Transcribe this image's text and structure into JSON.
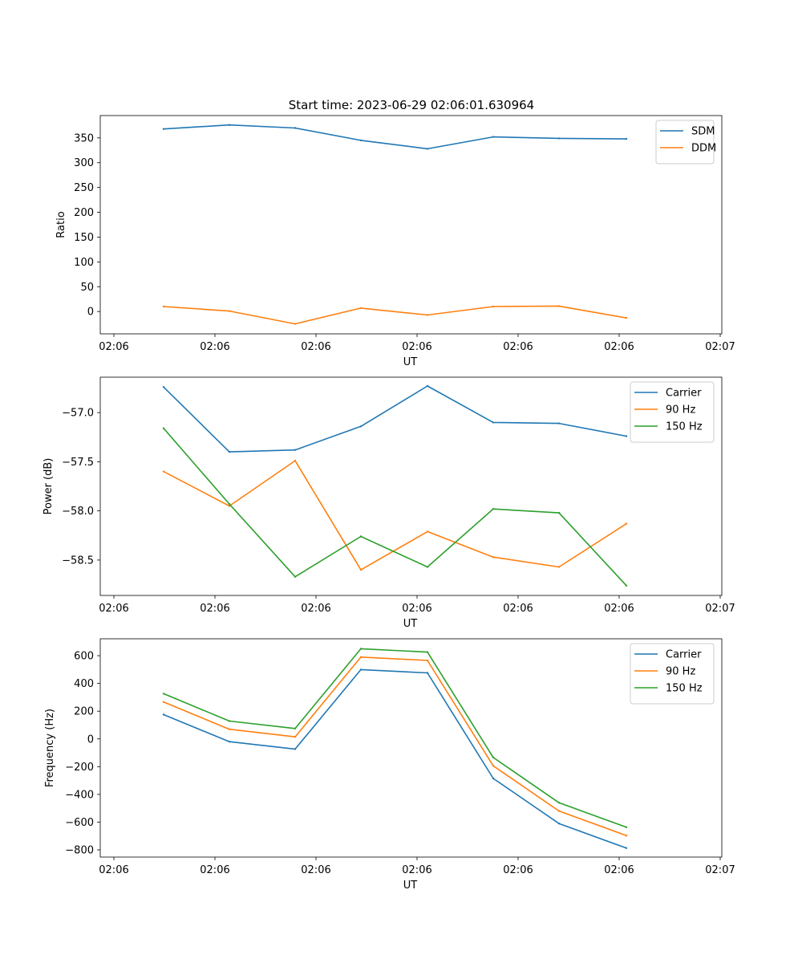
{
  "figure": {
    "title": "Start time: 2023-06-29 02:06:01.630964"
  },
  "chart_data": [
    {
      "type": "line",
      "title": "Start time: 2023-06-29 02:06:01.630964",
      "xlabel": "UT",
      "ylabel": "Ratio",
      "x_tick_labels": [
        "02:06",
        "02:06",
        "02:06",
        "02:06",
        "02:06",
        "02:06",
        "02:07"
      ],
      "y_ticks": [
        0,
        50,
        100,
        150,
        200,
        250,
        300,
        350
      ],
      "ylim": [
        -45,
        395
      ],
      "legend_position": "top-right",
      "grid": false,
      "series": [
        {
          "name": "SDM",
          "color": "#1f77b4",
          "values": [
            368,
            376,
            370,
            345,
            328,
            352,
            349,
            348
          ]
        },
        {
          "name": "DDM",
          "color": "#ff7f0e",
          "values": [
            10,
            1,
            -25,
            7,
            -7,
            10,
            11,
            -13
          ]
        }
      ]
    },
    {
      "type": "line",
      "title": "",
      "xlabel": "UT",
      "ylabel": "Power (dB)",
      "x_tick_labels": [
        "02:06",
        "02:06",
        "02:06",
        "02:06",
        "02:06",
        "02:06",
        "02:07"
      ],
      "y_ticks": [
        -58.5,
        -58.0,
        -57.5,
        -57.0
      ],
      "y_tick_labels": [
        "−58.5",
        "−58.0",
        "−57.5",
        "−57.0"
      ],
      "ylim": [
        -58.86,
        -56.64
      ],
      "legend_position": "top-right",
      "grid": false,
      "series": [
        {
          "name": "Carrier",
          "color": "#1f77b4",
          "values": [
            -56.74,
            -57.4,
            -57.38,
            -57.14,
            -56.73,
            -57.1,
            -57.11,
            -57.24
          ]
        },
        {
          "name": "90 Hz",
          "color": "#ff7f0e",
          "values": [
            -57.6,
            -57.95,
            -57.49,
            -58.6,
            -58.21,
            -58.47,
            -58.57,
            -58.13
          ]
        },
        {
          "name": "150 Hz",
          "color": "#2ca02c",
          "values": [
            -57.16,
            -57.93,
            -58.67,
            -58.26,
            -58.57,
            -57.98,
            -58.02,
            -58.76
          ]
        }
      ]
    },
    {
      "type": "line",
      "title": "",
      "xlabel": "UT",
      "ylabel": "Frequency (Hz)",
      "x_tick_labels": [
        "02:06",
        "02:06",
        "02:06",
        "02:06",
        "02:06",
        "02:06",
        "02:07"
      ],
      "y_ticks": [
        -800,
        -600,
        -400,
        -200,
        0,
        200,
        400,
        600
      ],
      "y_tick_labels": [
        "−800",
        "−600",
        "−400",
        "−200",
        "0",
        "200",
        "400",
        "600"
      ],
      "ylim": [
        -852,
        722
      ],
      "legend_position": "top-right",
      "grid": false,
      "series": [
        {
          "name": "Carrier",
          "color": "#1f77b4",
          "values": [
            175,
            -20,
            -73,
            500,
            476,
            -285,
            -610,
            -787
          ]
        },
        {
          "name": "90 Hz",
          "color": "#ff7f0e",
          "values": [
            266,
            70,
            15,
            590,
            566,
            -194,
            -520,
            -697
          ]
        },
        {
          "name": "150 Hz",
          "color": "#2ca02c",
          "values": [
            326,
            129,
            75,
            650,
            626,
            -134,
            -460,
            -637
          ]
        }
      ]
    }
  ]
}
